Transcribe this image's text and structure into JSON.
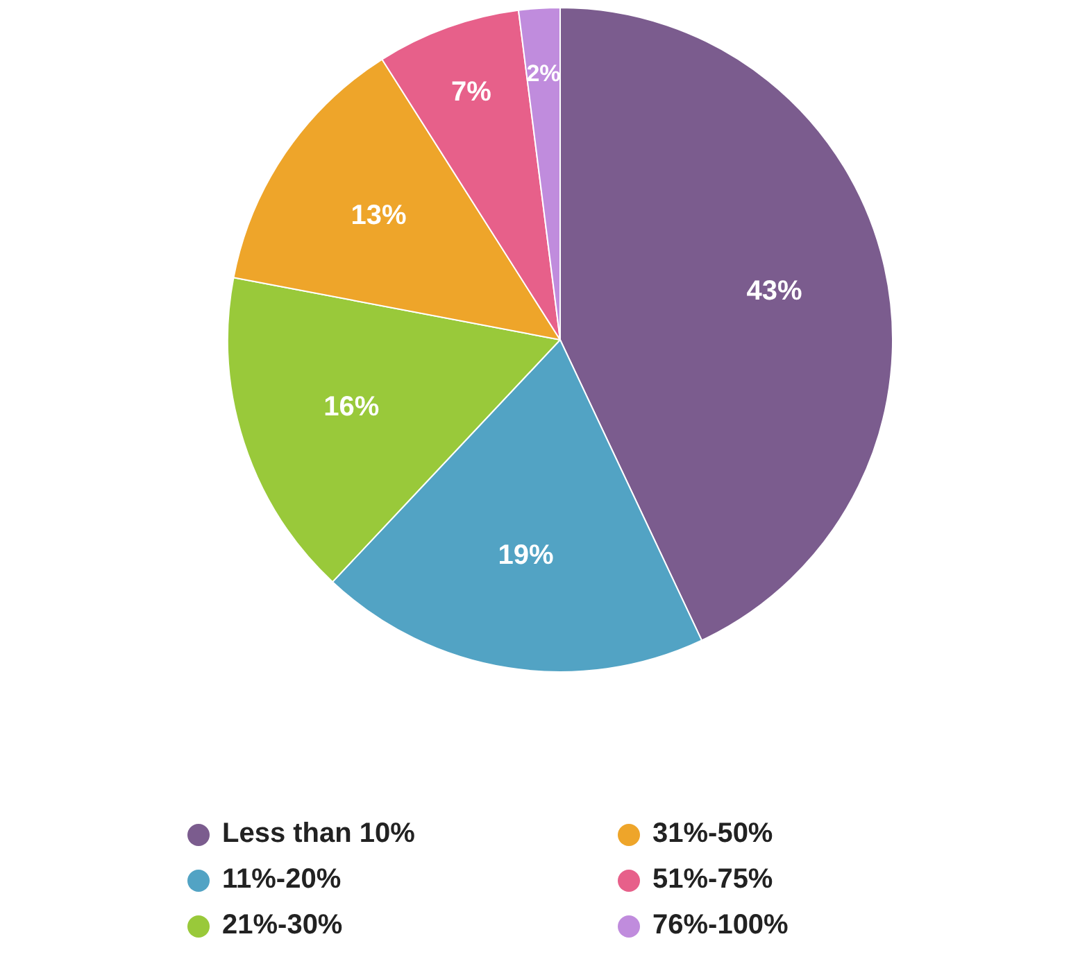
{
  "chart_data": {
    "type": "pie",
    "categories": [
      "Less than 10%",
      "11%-20%",
      "21%-30%",
      "31%-50%",
      "51%-75%",
      "76%-100%"
    ],
    "values": [
      43,
      19,
      16,
      13,
      7,
      2
    ],
    "colors": [
      "#7b5c8e",
      "#52a3c4",
      "#99c93a",
      "#eea52a",
      "#e7608a",
      "#c08cdd"
    ],
    "value_labels": [
      "43%",
      "19%",
      "16%",
      "13%",
      "7%",
      "2%"
    ],
    "legend": "bottom"
  }
}
